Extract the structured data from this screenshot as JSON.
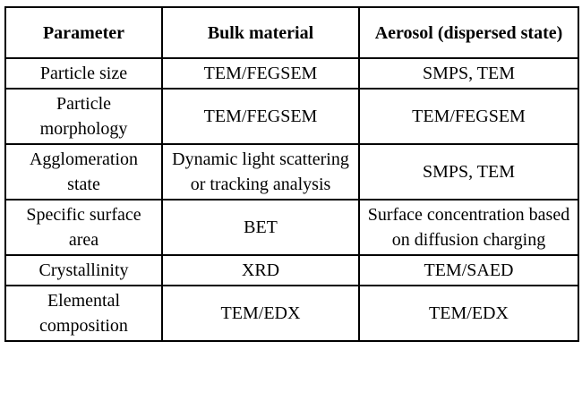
{
  "table": {
    "columns": [
      "Parameter",
      "Bulk material",
      "Aerosol (dispersed state)"
    ],
    "rows": [
      [
        "Particle size",
        "TEM/FEGSEM",
        "SMPS, TEM"
      ],
      [
        "Particle morphology",
        "TEM/FEGSEM",
        "TEM/FEGSEM"
      ],
      [
        "Agglomeration state",
        "Dynamic light scattering or tracking analysis",
        "SMPS, TEM"
      ],
      [
        "Specific surface area",
        "BET",
        "Surface concentration based on diffusion charging"
      ],
      [
        "Crystallinity",
        "XRD",
        "TEM/SAED"
      ],
      [
        "Elemental composition",
        "TEM/EDX",
        "TEM/EDX"
      ]
    ],
    "colors": {
      "border": "#000000",
      "text": "#000000",
      "background": "#ffffff"
    }
  }
}
